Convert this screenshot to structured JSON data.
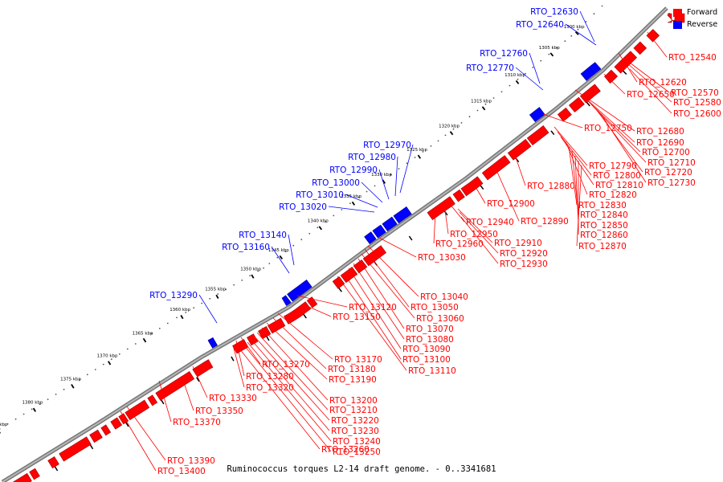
{
  "caption": "Ruminococcus torques L2-14 draft genome. - 0..3341681",
  "legend": {
    "forward": {
      "label": "Forward",
      "color": "#ff0000"
    },
    "reverse": {
      "label": "Reverse",
      "color": "#0000ff"
    }
  },
  "scale_ticks": [
    "1300 kbp",
    "1305 kbp",
    "1310 kbp",
    "1315 kbp",
    "1320 kbp",
    "1325 kbp",
    "1330 kbp",
    "1335 kbp",
    "1340 kbp",
    "1345 kbp",
    "1350 kbp",
    "1355 kbp",
    "1360 kbp",
    "1365 kbp",
    "1370 kbp",
    "1375 kbp",
    "1380 kbp",
    "1385 kbp"
  ],
  "reverse_genes": [
    "RTO_12630",
    "RTO_12640",
    "RTO_12760",
    "RTO_12770",
    "RTO_12970",
    "RTO_12980",
    "RTO_12990",
    "RTO_13000",
    "RTO_13010",
    "RTO_13020",
    "RTO_13140",
    "RTO_13160",
    "RTO_13290"
  ],
  "forward_genes": [
    "RTO_12540",
    "RTO_12620",
    "RTO_12570",
    "RTO_12650",
    "RTO_12580",
    "RTO_12600",
    "RTO_12680",
    "RTO_12750",
    "RTO_12690",
    "RTO_12700",
    "RTO_12710",
    "RTO_12790",
    "RTO_12720",
    "RTO_12800",
    "RTO_12730",
    "RTO_12810",
    "RTO_12880",
    "RTO_12820",
    "RTO_12830",
    "RTO_12900",
    "RTO_12840",
    "RTO_12890",
    "RTO_12940",
    "RTO_12850",
    "RTO_12950",
    "RTO_12860",
    "RTO_12910",
    "RTO_12960",
    "RTO_12870",
    "RTO_12920",
    "RTO_13030",
    "RTO_12930",
    "RTO_13040",
    "RTO_13050",
    "RTO_13120",
    "RTO_13060",
    "RTO_13150",
    "RTO_13070",
    "RTO_13080",
    "RTO_13090",
    "RTO_13100",
    "RTO_13170",
    "RTO_13110",
    "RTO_13270",
    "RTO_13180",
    "RTO_13190",
    "RTO_13280",
    "RTO_13320",
    "RTO_13200",
    "RTO_13210",
    "RTO_13330",
    "RTO_13220",
    "RTO_13350",
    "RTO_13230",
    "RTO_13370",
    "RTO_13240",
    "RTO_13250",
    "RTO_13260",
    "RTO_13390",
    "RTO_13400"
  ]
}
